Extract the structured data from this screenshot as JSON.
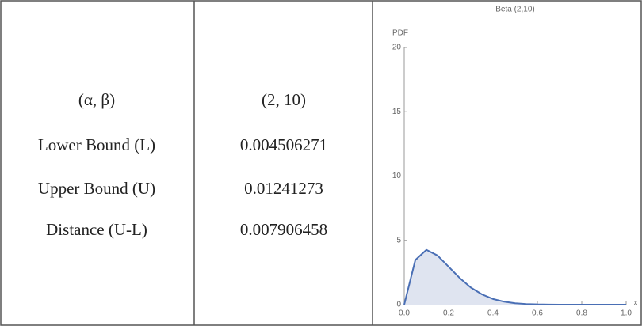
{
  "table": {
    "rows": [
      [
        "(α, β)",
        "(2, 10)"
      ],
      [
        "Lower Bound (L)",
        "0.004506271"
      ],
      [
        "Upper Bound (U)",
        "0.01241273"
      ],
      [
        "Distance (U-L)",
        "0.007906458"
      ]
    ]
  },
  "chart_data": {
    "type": "area",
    "title": "Beta (2,10)",
    "ylabel": "PDF",
    "xlabel": "x",
    "x": [
      0,
      0.05,
      0.1,
      0.15,
      0.2,
      0.25,
      0.3,
      0.35,
      0.4,
      0.45,
      0.5,
      0.55,
      0.6,
      0.65,
      0.7,
      0.8,
      0.9,
      1
    ],
    "values": [
      0,
      3.47,
      4.26,
      3.82,
      2.95,
      2.07,
      1.33,
      0.8,
      0.44,
      0.23,
      0.11,
      0.05,
      0.02,
      0.01,
      0,
      0,
      0,
      0
    ],
    "color": "#4a6fb5",
    "xlim": [
      0,
      1
    ],
    "ylim": [
      0,
      20
    ],
    "xticks": [
      {
        "value": 0,
        "label": "0.0"
      },
      0.2,
      0.4,
      0.6,
      0.8,
      {
        "value": 1,
        "label": "1.0"
      }
    ],
    "yticks": [
      0,
      5,
      10,
      15,
      20
    ]
  }
}
